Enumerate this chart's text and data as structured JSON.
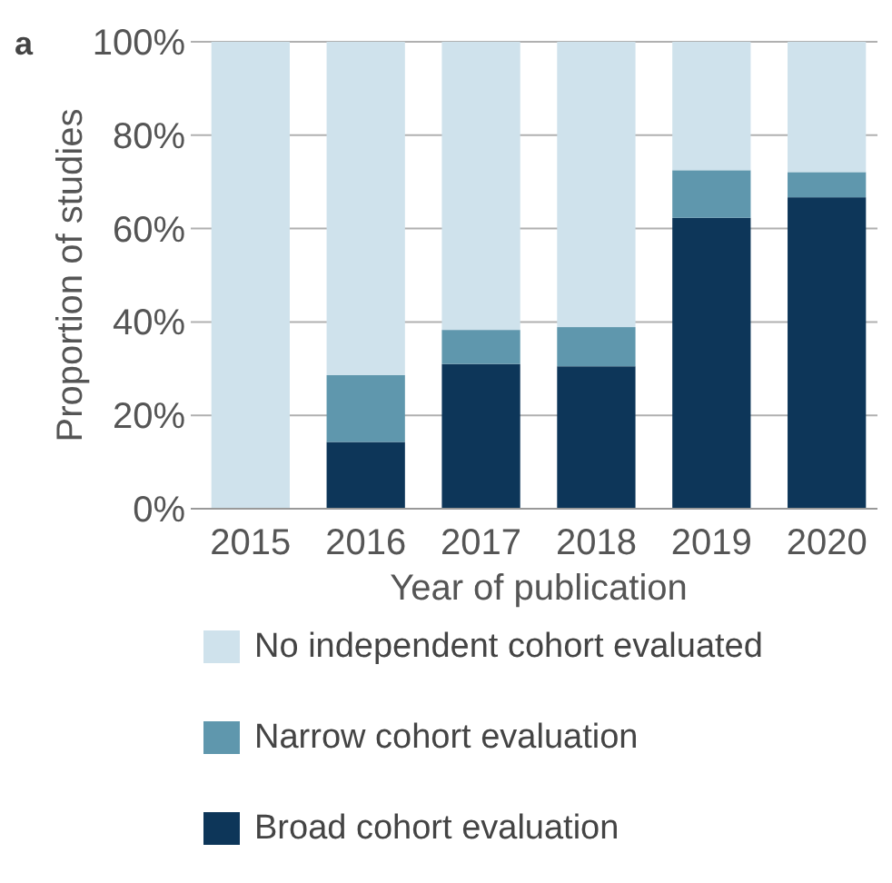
{
  "chart_data": {
    "type": "bar",
    "stacked": true,
    "xlabel": "Year of publication",
    "ylabel": "Proportion of studies",
    "annotations": [
      "a"
    ],
    "categories": [
      "2015",
      "2016",
      "2017",
      "2018",
      "2019",
      "2020"
    ],
    "series": [
      {
        "name": "Broad cohort evaluation",
        "color": "#0d3659",
        "values": [
          0,
          14.3,
          31,
          30.5,
          62.3,
          66.7
        ]
      },
      {
        "name": "Narrow cohort evaluation",
        "color": "#5f97ad",
        "values": [
          0,
          14.3,
          7.3,
          8.4,
          10.2,
          5.4
        ]
      },
      {
        "name": "No independent cohort evaluated",
        "color": "#cfe2ec",
        "values": [
          100,
          71.4,
          61.7,
          61.1,
          27.5,
          27.9
        ]
      }
    ],
    "ylim": [
      0,
      100
    ],
    "yticks": [
      {
        "value": 0,
        "label": "0%"
      },
      {
        "value": 20,
        "label": "20%"
      },
      {
        "value": 40,
        "label": "40%"
      },
      {
        "value": 60,
        "label": "60%"
      },
      {
        "value": 80,
        "label": "80%"
      },
      {
        "value": 100,
        "label": "100%"
      }
    ],
    "grid": "y",
    "legend": "bottom"
  }
}
